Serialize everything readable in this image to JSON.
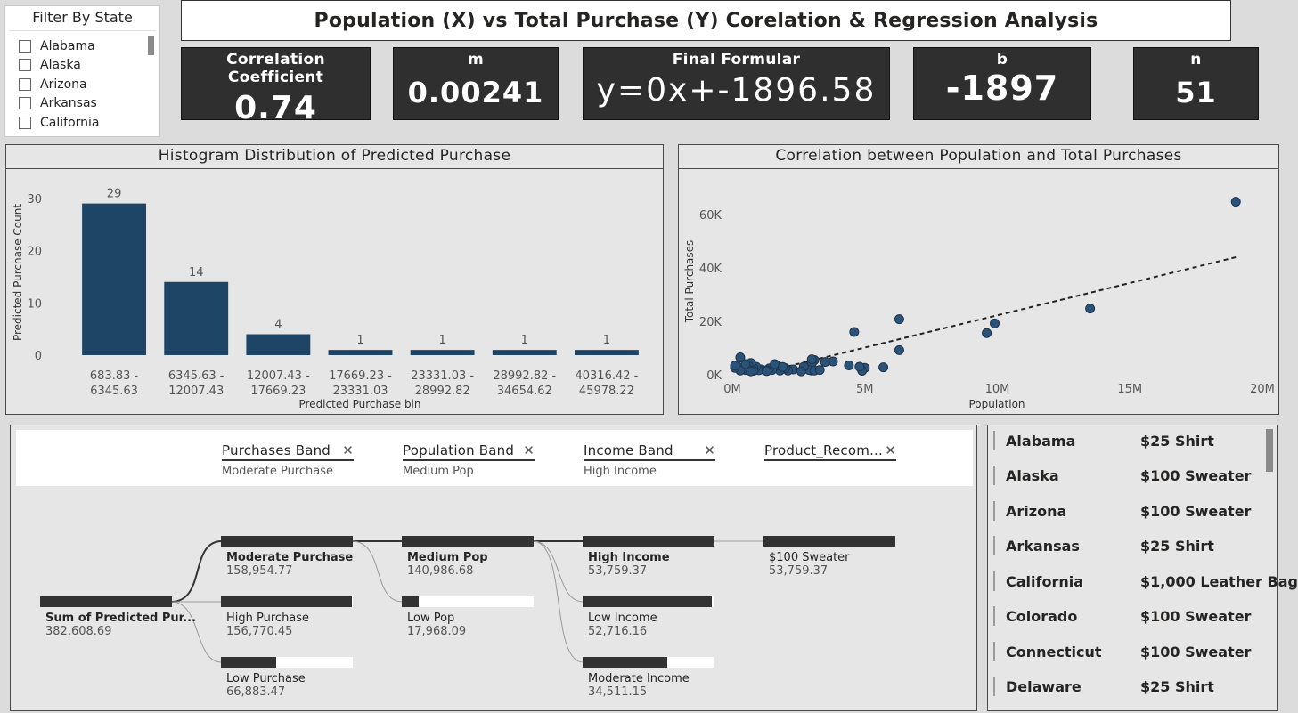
{
  "slicer": {
    "title": "Filter By State",
    "items": [
      "Alabama",
      "Alaska",
      "Arizona",
      "Arkansas",
      "California"
    ]
  },
  "page_title": "Population (X) vs Total Purchase (Y) Corelation & Regression Analysis",
  "kpis": {
    "corr": {
      "label": "Correlation Coefficient",
      "value": "0.74"
    },
    "m": {
      "label": "m",
      "value": "0.00241"
    },
    "formula": {
      "label": "Final Formular",
      "value": "y=0x+-1896.58"
    },
    "b": {
      "label": "b",
      "value": "-1897"
    },
    "n": {
      "label": "n",
      "value": "51"
    }
  },
  "histogram_title": "Histogram Distribution of Predicted Purchase",
  "scatter_title": "Correlation between Population and Total Purchases",
  "chart_data": [
    {
      "type": "bar",
      "title": "Histogram Distribution of Predicted Purchase",
      "xlabel": "Predicted Purchase bin",
      "ylabel": "Predicted Purchase Count",
      "ylim": [
        0,
        32
      ],
      "yticks": [
        0,
        10,
        20,
        30
      ],
      "categories": [
        [
          "683.83 -",
          "6345.63"
        ],
        [
          "6345.63 -",
          "12007.43"
        ],
        [
          "12007.43 -",
          "17669.23"
        ],
        [
          "17669.23 -",
          "23331.03"
        ],
        [
          "23331.03 -",
          "28992.82"
        ],
        [
          "28992.82 -",
          "34654.62"
        ],
        [
          "40316.42 -",
          "45978.22"
        ]
      ],
      "values": [
        29,
        14,
        4,
        1,
        1,
        1,
        1
      ],
      "color": "#1e4466"
    },
    {
      "type": "scatter",
      "title": "Correlation between Population and Total Purchases",
      "xlabel": "Population",
      "ylabel": "Total Purchases",
      "xlim": [
        0,
        20000000
      ],
      "ylim": [
        0,
        70000
      ],
      "xticks": [
        {
          "v": 0,
          "label": "0M"
        },
        {
          "v": 5000000,
          "label": "5M"
        },
        {
          "v": 10000000,
          "label": "10M"
        },
        {
          "v": 15000000,
          "label": "15M"
        },
        {
          "v": 20000000,
          "label": "20M"
        }
      ],
      "yticks": [
        {
          "v": 0,
          "label": "0K"
        },
        {
          "v": 20000,
          "label": "20K"
        },
        {
          "v": 40000,
          "label": "40K"
        },
        {
          "v": 60000,
          "label": "60K"
        }
      ],
      "trendline": {
        "x": [
          1200000,
          19000000
        ],
        "y": [
          1000,
          44000
        ]
      },
      "points": [
        [
          19000000,
          64800
        ],
        [
          13500000,
          24800
        ],
        [
          9900000,
          19200
        ],
        [
          9600000,
          15600
        ],
        [
          6300000,
          20800
        ],
        [
          6300000,
          9200
        ],
        [
          5700000,
          2800
        ],
        [
          4600000,
          16000
        ],
        [
          5000000,
          2600
        ],
        [
          4900000,
          1500
        ],
        [
          4800000,
          3000
        ],
        [
          4400000,
          3500
        ],
        [
          3800000,
          5000
        ],
        [
          3500000,
          4800
        ],
        [
          3100000,
          5500
        ],
        [
          3000000,
          4200
        ],
        [
          3000000,
          1600
        ],
        [
          2900000,
          1800
        ],
        [
          3100000,
          1600
        ],
        [
          2700000,
          3000
        ],
        [
          2300000,
          2000
        ],
        [
          2100000,
          1600
        ],
        [
          2000000,
          2500
        ],
        [
          1800000,
          1600
        ],
        [
          1700000,
          3400
        ],
        [
          1500000,
          1800
        ],
        [
          1400000,
          2400
        ],
        [
          1300000,
          1700
        ],
        [
          1100000,
          2000
        ],
        [
          1000000,
          1700
        ],
        [
          900000,
          3000
        ],
        [
          800000,
          2500
        ],
        [
          800000,
          1500
        ],
        [
          700000,
          4400
        ],
        [
          600000,
          3500
        ],
        [
          600000,
          2000
        ],
        [
          500000,
          1800
        ],
        [
          400000,
          2200
        ],
        [
          300000,
          6500
        ],
        [
          200000,
          3000
        ],
        [
          300000,
          1600
        ],
        [
          100000,
          2600
        ],
        [
          100000,
          3400
        ],
        [
          1300000,
          1400
        ],
        [
          1600000,
          4000
        ],
        [
          2600000,
          1300
        ],
        [
          3300000,
          1800
        ],
        [
          3000000,
          5800
        ],
        [
          1900000,
          2900
        ],
        [
          700000,
          1300
        ],
        [
          500000,
          4000
        ]
      ],
      "color": "#2b5277"
    }
  ],
  "tree": {
    "levels": [
      {
        "name": "Purchases Band",
        "selected": "Moderate Purchase"
      },
      {
        "name": "Population Band",
        "selected": "Medium Pop"
      },
      {
        "name": "Income Band",
        "selected": "High Income"
      },
      {
        "name": "Product_Recom...",
        "selected": ""
      }
    ],
    "close_glyph": "✕",
    "root": {
      "label": "Sum of Predicted Pur...",
      "value": "382,608.69",
      "fill": 1.0
    },
    "col1": [
      {
        "label": "Moderate Purchase",
        "value": "158,954.77",
        "fill": 1.0
      },
      {
        "label": "High Purchase",
        "value": "156,770.45",
        "fill": 0.99
      },
      {
        "label": "Low Purchase",
        "value": "66,883.47",
        "fill": 0.42
      }
    ],
    "col2": [
      {
        "label": "Medium Pop",
        "value": "140,986.68",
        "fill": 1.0
      },
      {
        "label": "Low Pop",
        "value": "17,968.09",
        "fill": 0.13
      }
    ],
    "col3": [
      {
        "label": "High Income",
        "value": "53,759.37",
        "fill": 1.0
      },
      {
        "label": "Low Income",
        "value": "52,716.16",
        "fill": 0.98
      },
      {
        "label": "Moderate Income",
        "value": "34,511.15",
        "fill": 0.64
      }
    ],
    "col4": [
      {
        "label": "$100 Sweater",
        "value": "53,759.37",
        "fill": 1.0
      }
    ]
  },
  "state_table": [
    {
      "state": "Alabama",
      "product": "$25 Shirt"
    },
    {
      "state": "Alaska",
      "product": "$100 Sweater"
    },
    {
      "state": "Arizona",
      "product": "$100 Sweater"
    },
    {
      "state": "Arkansas",
      "product": "$25 Shirt"
    },
    {
      "state": "California",
      "product": "$1,000 Leather Bag"
    },
    {
      "state": "Colorado",
      "product": "$100 Sweater"
    },
    {
      "state": "Connecticut",
      "product": "$100 Sweater"
    },
    {
      "state": "Delaware",
      "product": "$25 Shirt"
    }
  ]
}
